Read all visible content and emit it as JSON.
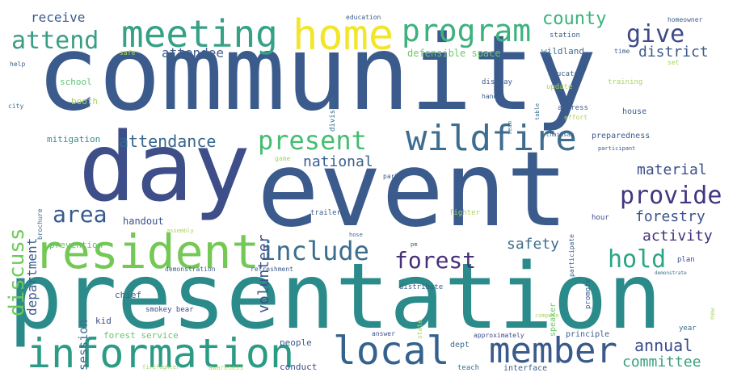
{
  "words": [
    {
      "text": "community",
      "color": "#3b5b8c"
    },
    {
      "text": "event",
      "color": "#3b5b8c"
    },
    {
      "text": "presentation",
      "color": "#2a8b8a"
    },
    {
      "text": "day",
      "color": "#3e4e88"
    },
    {
      "text": "resident",
      "color": "#74c855"
    },
    {
      "text": "information",
      "color": "#2c9b85"
    },
    {
      "text": "home",
      "color": "#f2e52a"
    },
    {
      "text": "meeting",
      "color": "#35a186"
    },
    {
      "text": "program",
      "color": "#3cb27c"
    },
    {
      "text": "wildfire",
      "color": "#3e6d8f"
    },
    {
      "text": "local",
      "color": "#35628d"
    },
    {
      "text": "member",
      "color": "#3a5a8c"
    },
    {
      "text": "attend",
      "color": "#3a9e86"
    },
    {
      "text": "give",
      "color": "#3c4a8a"
    },
    {
      "text": "present",
      "color": "#44be70"
    },
    {
      "text": "provide",
      "color": "#433680"
    },
    {
      "text": "include",
      "color": "#3b6e8d"
    },
    {
      "text": "forest",
      "color": "#46307a"
    },
    {
      "text": "hold",
      "color": "#2aa586"
    },
    {
      "text": "area",
      "color": "#365b8c"
    },
    {
      "text": "discuss",
      "color": "#6ec95a"
    },
    {
      "text": "county",
      "color": "#3ab37a"
    },
    {
      "text": "district",
      "color": "#3b5a8b"
    },
    {
      "text": "attendance",
      "color": "#37678d"
    },
    {
      "text": "national",
      "color": "#3a5f8c"
    },
    {
      "text": "material",
      "color": "#3d4d8a"
    },
    {
      "text": "forestry",
      "color": "#3c548c"
    },
    {
      "text": "activity",
      "color": "#46307a"
    },
    {
      "text": "safety",
      "color": "#3d6f8e"
    },
    {
      "text": "annual",
      "color": "#3a4a89"
    },
    {
      "text": "committee",
      "color": "#3aa080"
    },
    {
      "text": "volunteer",
      "color": "#3b4f8b"
    },
    {
      "text": "department",
      "color": "#3e5f8d"
    },
    {
      "text": "receive",
      "color": "#3b5d8c"
    },
    {
      "text": "attendee",
      "color": "#3c5e8c"
    },
    {
      "text": "defensible space",
      "color": "#6cc66a"
    },
    {
      "text": "wildland",
      "color": "#3d6e8e"
    },
    {
      "text": "session",
      "color": "#3b6e8e"
    },
    {
      "text": "handout",
      "color": "#3d4e8a"
    },
    {
      "text": "prevention",
      "color": "#60c26d"
    },
    {
      "text": "mitigation",
      "color": "#3a8b8a"
    },
    {
      "text": "school",
      "color": "#63c47a"
    },
    {
      "text": "booth",
      "color": "#a9d55f"
    },
    {
      "text": "chief",
      "color": "#3b5f8c"
    },
    {
      "text": "kid",
      "color": "#3e4e8a"
    },
    {
      "text": "smokey bear",
      "color": "#3d4b89"
    },
    {
      "text": "forest service",
      "color": "#69c56c"
    },
    {
      "text": "firefighter",
      "color": "#9fd56a"
    },
    {
      "text": "awareness",
      "color": "#b3dd61"
    },
    {
      "text": "conduct",
      "color": "#3d4d89"
    },
    {
      "text": "people",
      "color": "#3a5c8c"
    },
    {
      "text": "dept",
      "color": "#3d6a8d"
    },
    {
      "text": "teach",
      "color": "#3b6d8d"
    },
    {
      "text": "interface",
      "color": "#3b5f8c"
    },
    {
      "text": "approximately",
      "color": "#3d4b89"
    },
    {
      "text": "principle",
      "color": "#3b5d8c"
    },
    {
      "text": "year",
      "color": "#3b6e8d"
    },
    {
      "text": "distribute",
      "color": "#3b5c8c"
    },
    {
      "text": "answer",
      "color": "#3d4e8a"
    },
    {
      "text": "speaker",
      "color": "#6cc66a"
    },
    {
      "text": "promote",
      "color": "#3b5c8c"
    },
    {
      "text": "participate",
      "color": "#3b5a8c"
    },
    {
      "text": "plan",
      "color": "#3d4b89"
    },
    {
      "text": "hour",
      "color": "#3e4d8a"
    },
    {
      "text": "demonstration",
      "color": "#3b5f8c"
    },
    {
      "text": "refreshment",
      "color": "#3b5c8c"
    },
    {
      "text": "trailer",
      "color": "#3b5c8c"
    },
    {
      "text": "fighter",
      "color": "#a3d65c"
    },
    {
      "text": "hose",
      "color": "#3b6d8d"
    },
    {
      "text": "pm",
      "color": "#3b5c8c"
    },
    {
      "text": "assembly",
      "color": "#a3d65c"
    },
    {
      "text": "park",
      "color": "#3b5c8c"
    },
    {
      "text": "game",
      "color": "#a3d65c"
    },
    {
      "text": "brochure",
      "color": "#3b6d8d"
    },
    {
      "text": "city",
      "color": "#3b6d8d"
    },
    {
      "text": "help",
      "color": "#3b5c8c"
    },
    {
      "text": "safe",
      "color": "#a9d55f"
    },
    {
      "text": "education",
      "color": "#3b5c8c"
    },
    {
      "text": "station",
      "color": "#3b5c8c"
    },
    {
      "text": "homeowner",
      "color": "#3b5c8c"
    },
    {
      "text": "time",
      "color": "#3b5c8c"
    },
    {
      "text": "set",
      "color": "#a3d65c"
    },
    {
      "text": "division",
      "color": "#3b6d8d"
    },
    {
      "text": "display",
      "color": "#3b5c8c"
    },
    {
      "text": "educate",
      "color": "#3b5c8c"
    },
    {
      "text": "hand",
      "color": "#3b5c8c"
    },
    {
      "text": "update",
      "color": "#a9d55f"
    },
    {
      "text": "training",
      "color": "#a9d55f"
    },
    {
      "text": "table",
      "color": "#3b6d8d"
    },
    {
      "text": "team",
      "color": "#3b6d8d"
    },
    {
      "text": "address",
      "color": "#3b5c8c"
    },
    {
      "text": "effort",
      "color": "#a9d55f"
    },
    {
      "text": "house",
      "color": "#3b5c8c"
    },
    {
      "text": "preparedness",
      "color": "#3b5c8c"
    },
    {
      "text": "chainsaw",
      "color": "#3b5c8c"
    },
    {
      "text": "participant",
      "color": "#3b5c8c"
    },
    {
      "text": "compete",
      "color": "#a9d55f"
    },
    {
      "text": "state",
      "color": "#a9d55f"
    },
    {
      "text": "demonstrate",
      "color": "#3b6d8d"
    },
    {
      "text": "new",
      "color": "#a9d55f"
    }
  ]
}
